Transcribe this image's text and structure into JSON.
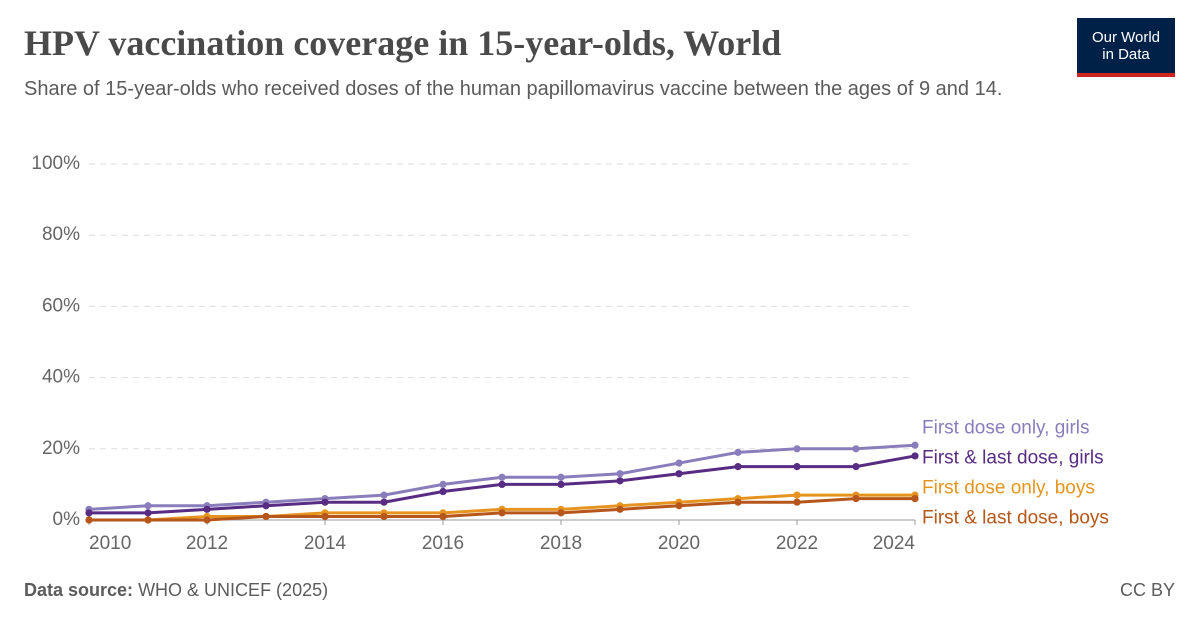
{
  "chart_data": {
    "type": "line",
    "title": "HPV vaccination coverage in 15-year-olds, World",
    "subtitle": "Share of 15-year-olds who received doses of the human papillomavirus vaccine between the ages of 9 and 14.",
    "logo": [
      "Our World",
      "in Data"
    ],
    "source_label": "Data source:",
    "source": "WHO & UNICEF (2025)",
    "license": "CC BY",
    "x": [
      2010,
      2011,
      2012,
      2013,
      2014,
      2015,
      2016,
      2017,
      2018,
      2019,
      2020,
      2021,
      2022,
      2023,
      2024
    ],
    "series": [
      {
        "name": "First dose only, girls",
        "color": "#8a7dbb",
        "values": [
          3,
          4,
          4,
          5,
          6,
          7,
          10,
          12,
          12,
          13,
          16,
          19,
          20,
          20,
          21
        ]
      },
      {
        "name": "First & last dose, girls",
        "color": "#582c83",
        "values": [
          2,
          2,
          3,
          4,
          5,
          5,
          8,
          10,
          10,
          11,
          13,
          15,
          15,
          15,
          18
        ]
      },
      {
        "name": "First dose only, boys",
        "color": "#e5951f",
        "values": [
          0,
          0,
          1,
          1,
          2,
          2,
          2,
          3,
          3,
          4,
          5,
          6,
          7,
          7,
          7
        ]
      },
      {
        "name": "First & last dose, boys",
        "color": "#b6561a",
        "values": [
          0,
          0,
          0,
          1,
          1,
          1,
          1,
          2,
          2,
          3,
          4,
          5,
          5,
          6,
          6
        ]
      }
    ],
    "xlim": [
      2010,
      2024
    ],
    "xticks": [
      2010,
      2012,
      2014,
      2016,
      2018,
      2020,
      2022,
      2024
    ],
    "ylim": [
      0,
      100
    ],
    "yticks": [
      {
        "value": 0,
        "label": "0%"
      },
      {
        "value": 20,
        "label": "20%"
      },
      {
        "value": 40,
        "label": "40%"
      },
      {
        "value": 60,
        "label": "60%"
      },
      {
        "value": 80,
        "label": "80%"
      },
      {
        "value": 100,
        "label": "100%"
      }
    ],
    "grid": true
  }
}
